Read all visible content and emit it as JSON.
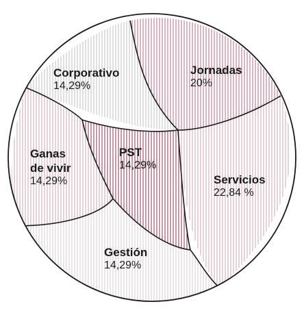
{
  "chart_data": {
    "type": "pie",
    "title": "",
    "slices": [
      {
        "label": "Corporativo",
        "label_lines": [
          "Corporativo"
        ],
        "value_text": "14,29%",
        "value": 14.29,
        "hatch_color": "#bfbfbf"
      },
      {
        "label": "Jornadas",
        "label_lines": [
          "Jornadas"
        ],
        "value_text": "20%",
        "value": 20.0,
        "hatch_color": "#b06a86"
      },
      {
        "label": "Servicios",
        "label_lines": [
          "Servicios"
        ],
        "value_text": "22,84 %",
        "value": 22.84,
        "hatch_color": "#c9a3b4"
      },
      {
        "label": "Gestión",
        "label_lines": [
          "Gestión"
        ],
        "value_text": "14,29%",
        "value": 14.29,
        "hatch_color": "#d9c8d0"
      },
      {
        "label": "Ganas de vivir",
        "label_lines": [
          "Ganas",
          "de vivir"
        ],
        "value_text": "14,29%",
        "value": 14.29,
        "hatch_color": "#c9a3b4"
      },
      {
        "label": "PST",
        "label_lines": [
          "PST"
        ],
        "value_text": "14,29%",
        "value": 14.29,
        "hatch_color": "#8a2f52"
      }
    ],
    "legend": "none",
    "grid": false
  }
}
